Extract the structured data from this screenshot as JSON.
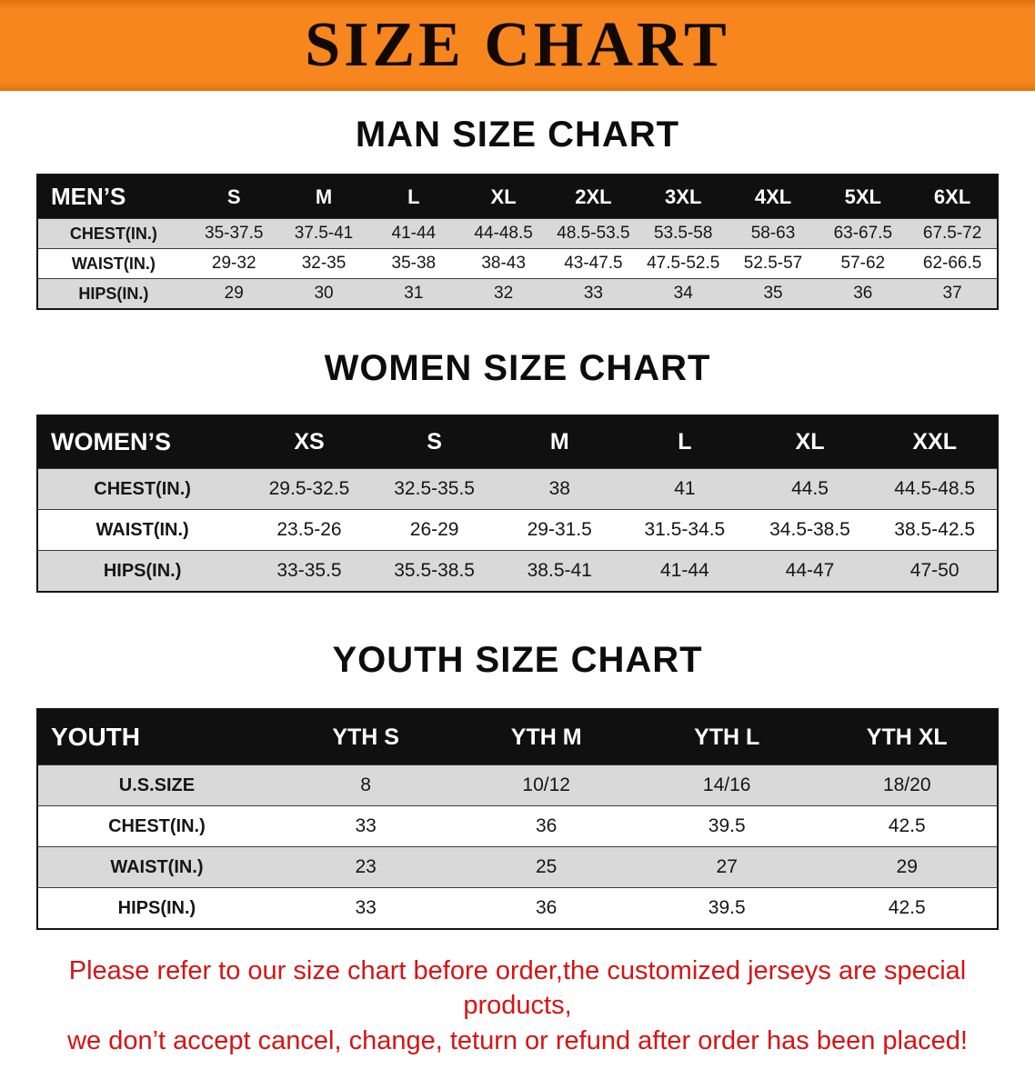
{
  "theme": {
    "banner-bg": "#f6861d",
    "banner-bg-dark": "#e07410",
    "banner-text": "#120a02",
    "heading-color": "#0d0d0d",
    "table-header-bg": "#101010",
    "table-header-text": "#ffffff",
    "row-stripe": "#d9d9d9",
    "row-plain": "#ffffff",
    "notice-color": "#d61414"
  },
  "banner": {
    "title": "SIZE CHART"
  },
  "sections": {
    "men": {
      "heading": "MAN SIZE CHART",
      "table": {
        "header": [
          "MEN’S",
          "S",
          "M",
          "L",
          "XL",
          "2XL",
          "3XL",
          "4XL",
          "5XL",
          "6XL"
        ],
        "rows": [
          [
            "CHEST(IN.)",
            "35-37.5",
            "37.5-41",
            "41-44",
            "44-48.5",
            "48.5-53.5",
            "53.5-58",
            "58-63",
            "63-67.5",
            "67.5-72"
          ],
          [
            "WAIST(IN.)",
            "29-32",
            "32-35",
            "35-38",
            "38-43",
            "43-47.5",
            "47.5-52.5",
            "52.5-57",
            "57-62",
            "62-66.5"
          ],
          [
            "HIPS(IN.)",
            "29",
            "30",
            "31",
            "32",
            "33",
            "34",
            "35",
            "36",
            "37"
          ]
        ]
      }
    },
    "women": {
      "heading": "WOMEN SIZE CHART",
      "table": {
        "header": [
          "WOMEN’S",
          "XS",
          "S",
          "M",
          "L",
          "XL",
          "XXL"
        ],
        "rows": [
          [
            "CHEST(IN.)",
            "29.5-32.5",
            "32.5-35.5",
            "38",
            "41",
            "44.5",
            "44.5-48.5"
          ],
          [
            "WAIST(IN.)",
            "23.5-26",
            "26-29",
            "29-31.5",
            "31.5-34.5",
            "34.5-38.5",
            "38.5-42.5"
          ],
          [
            "HIPS(IN.)",
            "33-35.5",
            "35.5-38.5",
            "38.5-41",
            "41-44",
            "44-47",
            "47-50"
          ]
        ]
      }
    },
    "youth": {
      "heading": "YOUTH SIZE CHART",
      "table": {
        "header": [
          "YOUTH",
          "YTH S",
          "YTH M",
          "YTH L",
          "YTH XL"
        ],
        "rows": [
          [
            "U.S.SIZE",
            "8",
            "10/12",
            "14/16",
            "18/20"
          ],
          [
            "CHEST(IN.)",
            "33",
            "36",
            "39.5",
            "42.5"
          ],
          [
            "WAIST(IN.)",
            "23",
            "25",
            "27",
            "29"
          ],
          [
            "HIPS(IN.)",
            "33",
            "36",
            "39.5",
            "42.5"
          ]
        ]
      }
    }
  },
  "footer": {
    "line1": "Please refer to our size chart before order,the customized jerseys are special products,",
    "line2": "we don’t accept cancel, change, teturn or refund after order has been placed!"
  }
}
